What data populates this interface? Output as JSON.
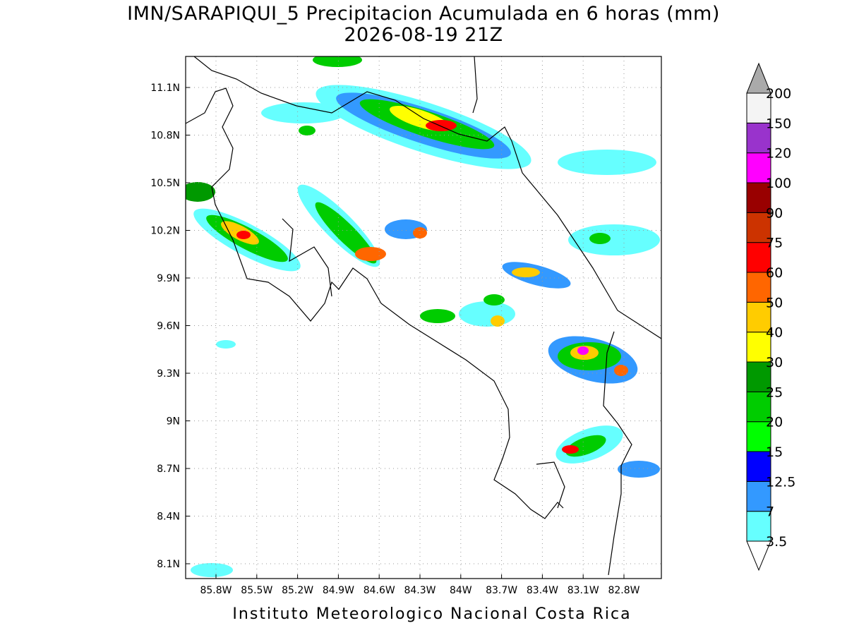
{
  "title": "IMN/SARAPIQUI_5 Precipitacion Acumulada en 6 horas (mm)",
  "subtitle": "2026-08-19 21Z",
  "map": {
    "lat_ticks": [
      "11.1N",
      "10.8N",
      "10.5N",
      "10.2N",
      "9.9N",
      "9.6N",
      "9.3N",
      "9N",
      "8.7N",
      "8.4N",
      "8.1N"
    ],
    "lon_ticks": [
      "85.8W",
      "85.5W",
      "85.2W",
      "84.9W",
      "84.6W",
      "84.3W",
      "84W",
      "83.7W",
      "83.4W",
      "83.1W",
      "82.8W"
    ]
  },
  "colorbar": {
    "labels": [
      "3.5",
      "7",
      "12.5",
      "15",
      "20",
      "25",
      "30",
      "40",
      "50",
      "60",
      "75",
      "90",
      "100",
      "120",
      "150",
      "200"
    ],
    "colors": [
      "#66ffff",
      "#3399ff",
      "#0000ff",
      "#00ff00",
      "#00cc00",
      "#009900",
      "#ffff00",
      "#ffcc00",
      "#ff6600",
      "#ff0000",
      "#cc3300",
      "#990000",
      "#ff00ff",
      "#9933cc",
      "#f4f4f4"
    ]
  },
  "footer": "Instituto Meteorologico Nacional Costa Rica"
}
